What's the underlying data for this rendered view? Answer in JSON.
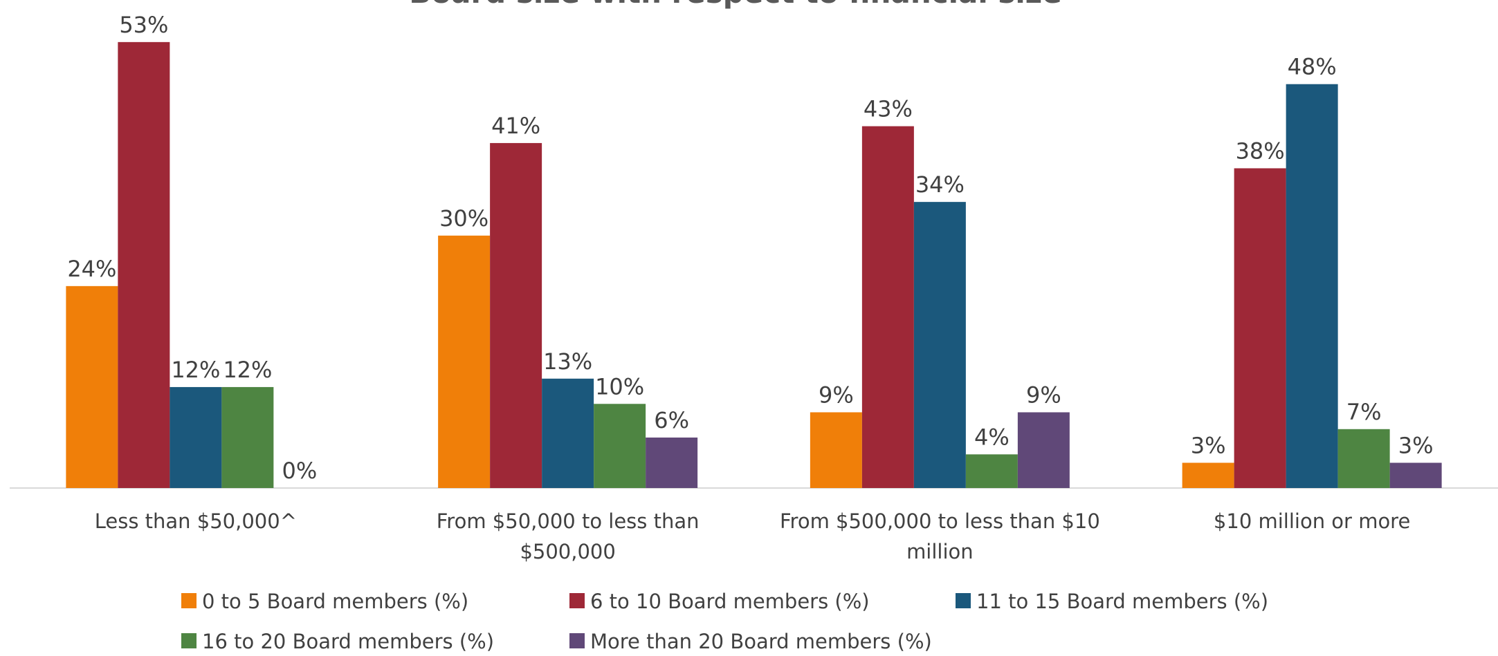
{
  "chart_data": {
    "type": "bar",
    "title": "Board size with respect to financial size",
    "categories": [
      "Less than $50,000^",
      "From $50,000 to less than $500,000",
      "From $500,000 to less than $10 million",
      "$10 million or more"
    ],
    "series": [
      {
        "name": "0 to 5 Board members (%)",
        "color": "#F07F09",
        "values": [
          24,
          30,
          9,
          3
        ],
        "value_labels": [
          "24%",
          "30%",
          "9%",
          "3%"
        ]
      },
      {
        "name": "6 to 10 Board members (%)",
        "color": "#9E2837",
        "values": [
          53,
          41,
          43,
          38
        ],
        "value_labels": [
          "53%",
          "41%",
          "43%",
          "38%"
        ]
      },
      {
        "name": "11 to 15 Board members (%)",
        "color": "#1B587C",
        "values": [
          12,
          13,
          34,
          48
        ],
        "value_labels": [
          "12%",
          "13%",
          "34%",
          "48%"
        ]
      },
      {
        "name": "16 to 20 Board members (%)",
        "color": "#4E8542",
        "values": [
          12,
          10,
          4,
          7
        ],
        "value_labels": [
          "12%",
          "10%",
          "4%",
          "7%"
        ]
      },
      {
        "name": "More than 20 Board members (%)",
        "color": "#604878",
        "values": [
          0,
          6,
          9,
          3
        ],
        "value_labels": [
          "0%",
          "6%",
          "9%",
          "3%"
        ]
      }
    ],
    "ylim": [
      0,
      58
    ],
    "legend": "bottom"
  }
}
